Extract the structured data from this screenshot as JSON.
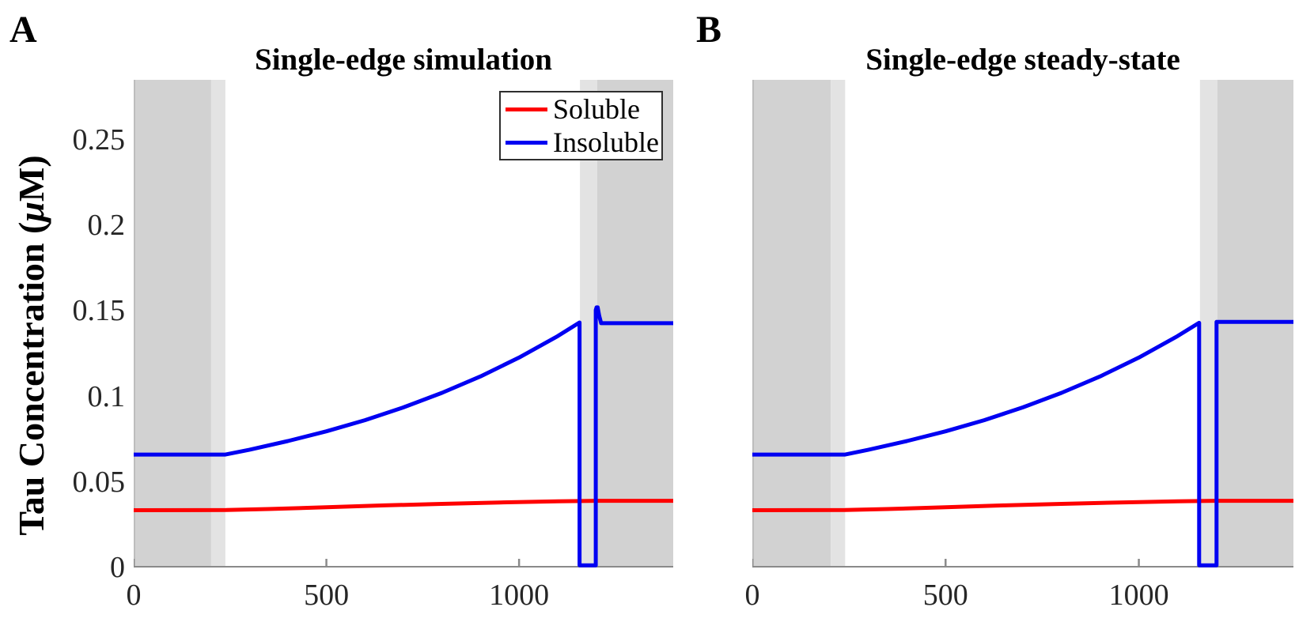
{
  "figure": {
    "panel_letters": [
      "A",
      "B"
    ],
    "ylabel": {
      "pre": "Tau Concentration (",
      "mu": "μ",
      "post": "M)"
    },
    "band_colors": {
      "dark": "#d2d2d2",
      "light": "#e3e3e3"
    },
    "axis_color": "#8a8a8a",
    "tick_label_color": "#262626",
    "legend": {
      "items": [
        {
          "label": "Soluble",
          "color": "#fe0000"
        },
        {
          "label": "Insoluble",
          "color": "#0000f2"
        }
      ]
    }
  },
  "chart_data": [
    {
      "type": "line",
      "title": "Single-edge simulation",
      "xlabel": "",
      "ylabel": "Tau Concentration (μM)",
      "xlim": [
        0,
        1400
      ],
      "ylim": [
        0,
        0.285
      ],
      "grid": false,
      "x_ticks": {
        "values": [
          0,
          500,
          1000
        ],
        "labels": [
          "0",
          "500",
          "1000"
        ]
      },
      "y_ticks": {
        "values": [
          0,
          0.05,
          0.1,
          0.15,
          0.2,
          0.25
        ],
        "labels": [
          "0",
          "0.05",
          "0.1",
          "0.15",
          "0.2",
          "0.25"
        ]
      },
      "show_y_tick_labels": true,
      "legend_position": "upper-right-inside",
      "shaded_regions": [
        {
          "x0": 0,
          "x1": 201,
          "shade": "dark"
        },
        {
          "x0": 201,
          "x1": 238,
          "shade": "light"
        },
        {
          "x0": 1158,
          "x1": 1203,
          "shade": "light"
        },
        {
          "x0": 1203,
          "x1": 1400,
          "shade": "dark"
        }
      ],
      "series": [
        {
          "name": "Soluble",
          "color": "#fe0000",
          "line_width": 5,
          "points": [
            [
              0,
              0.0335
            ],
            [
              240,
              0.0336
            ],
            [
              350,
              0.0342
            ],
            [
              500,
              0.0352
            ],
            [
              650,
              0.0363
            ],
            [
              800,
              0.0372
            ],
            [
              950,
              0.038
            ],
            [
              1100,
              0.0387
            ],
            [
              1200,
              0.039
            ],
            [
              1400,
              0.039
            ]
          ]
        },
        {
          "name": "Insoluble",
          "color": "#0000f2",
          "line_width": 5,
          "points": [
            [
              0,
              0.066
            ],
            [
              238,
              0.066
            ],
            [
              300,
              0.0688
            ],
            [
              400,
              0.0739
            ],
            [
              500,
              0.0796
            ],
            [
              600,
              0.0861
            ],
            [
              700,
              0.0936
            ],
            [
              800,
              0.1021
            ],
            [
              900,
              0.1117
            ],
            [
              1000,
              0.1227
            ],
            [
              1100,
              0.1352
            ],
            [
              1157,
              0.1432
            ],
            [
              1157,
              0
            ],
            [
              1199,
              0
            ],
            [
              1199,
              0.1505
            ],
            [
              1201,
              0.152
            ],
            [
              1204,
              0.152
            ],
            [
              1208,
              0.147
            ],
            [
              1213,
              0.1428
            ],
            [
              1400,
              0.1428
            ]
          ]
        }
      ]
    },
    {
      "type": "line",
      "title": "Single-edge steady-state",
      "xlabel": "",
      "ylabel": "",
      "xlim": [
        0,
        1400
      ],
      "ylim": [
        0,
        0.285
      ],
      "grid": false,
      "x_ticks": {
        "values": [
          0,
          500,
          1000
        ],
        "labels": [
          "0",
          "500",
          "1000"
        ]
      },
      "y_ticks": {
        "values": [
          0,
          0.05,
          0.1,
          0.15,
          0.2,
          0.25
        ],
        "labels": [
          "0",
          "0.05",
          "0.1",
          "0.15",
          "0.2",
          "0.25"
        ]
      },
      "show_y_tick_labels": false,
      "legend_position": "none",
      "shaded_regions": [
        {
          "x0": 0,
          "x1": 203,
          "shade": "dark"
        },
        {
          "x0": 203,
          "x1": 240,
          "shade": "light"
        },
        {
          "x0": 1158,
          "x1": 1203,
          "shade": "light"
        },
        {
          "x0": 1203,
          "x1": 1400,
          "shade": "dark"
        }
      ],
      "series": [
        {
          "name": "Soluble",
          "color": "#fe0000",
          "line_width": 5,
          "points": [
            [
              0,
              0.0335
            ],
            [
              240,
              0.0336
            ],
            [
              350,
              0.0342
            ],
            [
              500,
              0.0352
            ],
            [
              650,
              0.0363
            ],
            [
              800,
              0.0372
            ],
            [
              950,
              0.038
            ],
            [
              1100,
              0.0387
            ],
            [
              1200,
              0.039
            ],
            [
              1400,
              0.039
            ]
          ]
        },
        {
          "name": "Insoluble",
          "color": "#0000f2",
          "line_width": 5,
          "points": [
            [
              0,
              0.066
            ],
            [
              240,
              0.066
            ],
            [
              300,
              0.0688
            ],
            [
              400,
              0.0739
            ],
            [
              500,
              0.0796
            ],
            [
              600,
              0.0861
            ],
            [
              700,
              0.0936
            ],
            [
              800,
              0.1021
            ],
            [
              900,
              0.1117
            ],
            [
              1000,
              0.1227
            ],
            [
              1100,
              0.1352
            ],
            [
              1156,
              0.143
            ],
            [
              1156,
              0
            ],
            [
              1201,
              0
            ],
            [
              1201,
              0.1435
            ],
            [
              1400,
              0.1435
            ]
          ]
        }
      ]
    }
  ]
}
